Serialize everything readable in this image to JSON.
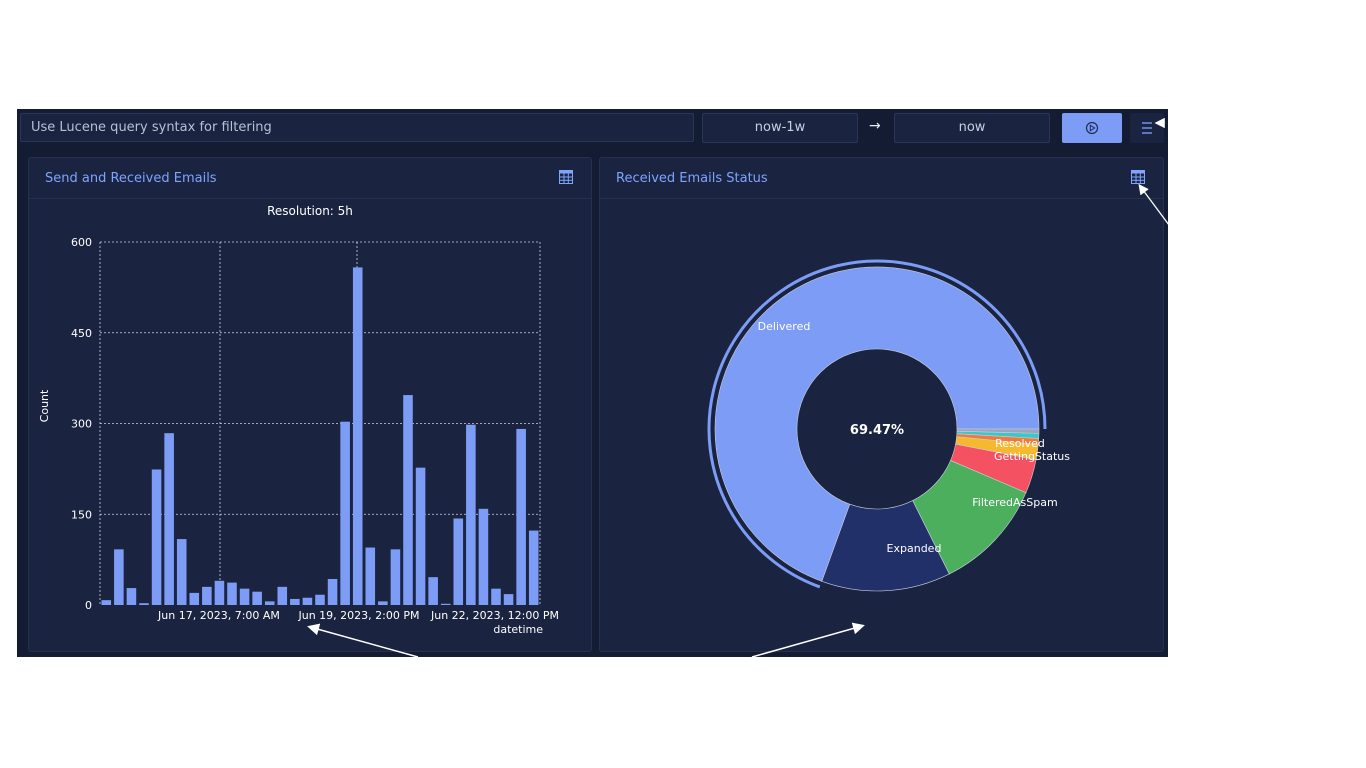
{
  "toolbar": {
    "search_placeholder": "Use Lucene query syntax for filtering",
    "time_from": "now-1w",
    "time_arrow": "→",
    "time_to": "now",
    "run_icon": "play-circle-icon",
    "menu_icon": "hamburger-menu-icon"
  },
  "panels": {
    "left_title": "Send and Received Emails",
    "right_title": "Received Emails Status",
    "table_icon": "table-icon"
  },
  "colors": {
    "accent": "#7d9cf5",
    "background": "#131c33",
    "panel": "#1a2440",
    "title": "#7fa3ff"
  },
  "chart_data": [
    {
      "type": "bar",
      "title": "Resolution: 5h",
      "xlabel": "datetime",
      "ylabel": "Count",
      "ylim": [
        0,
        600
      ],
      "yticks": [
        0,
        150,
        300,
        450,
        600
      ],
      "xtick_labels": [
        "Jun 17, 2023, 7:00 AM",
        "Jun 19, 2023, 2:00 PM",
        "Jun 22, 2023, 12:00 PM"
      ],
      "grid": true,
      "values": [
        8,
        92,
        28,
        3,
        224,
        284,
        109,
        20,
        30,
        40,
        37,
        27,
        22,
        6,
        30,
        10,
        12,
        17,
        43,
        303,
        558,
        95,
        6,
        92,
        347,
        227,
        46,
        2,
        143,
        298,
        159,
        27,
        18,
        291,
        123
      ]
    },
    {
      "type": "pie",
      "hole": true,
      "center_label": "69.47%",
      "slices": [
        {
          "label": "Delivered",
          "value": 69.47,
          "color": "#7d9cf5"
        },
        {
          "label": "Expanded",
          "value": 12.9,
          "color": "#22306a"
        },
        {
          "label": "FilteredAsSpam",
          "value": 11.2,
          "color": "#4caf5e"
        },
        {
          "label": "GettingStatus",
          "value": 3.4,
          "color": "#f45263"
        },
        {
          "label": "Resolved",
          "value": 1.5,
          "color": "#f5b82e"
        },
        {
          "label": "",
          "value": 0.6,
          "color": "#f07a3a"
        },
        {
          "label": "",
          "value": 0.5,
          "color": "#3bc7c7"
        },
        {
          "label": "",
          "value": 0.43,
          "color": "#9aa6bf"
        }
      ]
    }
  ]
}
